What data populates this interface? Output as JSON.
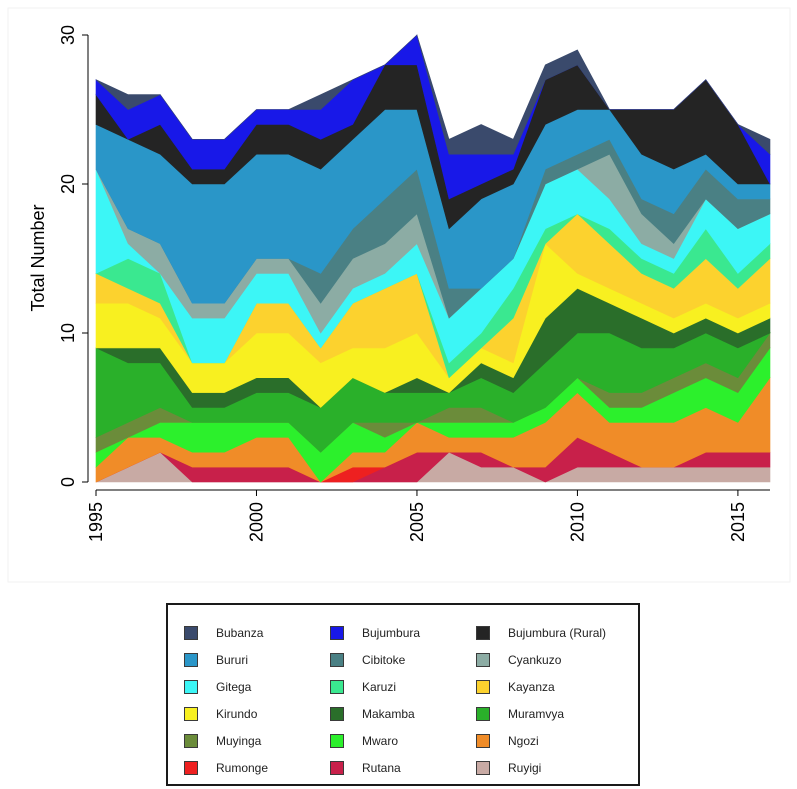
{
  "chart_data": {
    "type": "area",
    "stacked": true,
    "title": "",
    "ylabel": "Total Number",
    "xlabel": "",
    "xlim": [
      1995,
      2016
    ],
    "ylim": [
      0,
      30
    ],
    "x_ticks": [
      1995,
      2000,
      2005,
      2010,
      2015
    ],
    "y_ticks": [
      0,
      10,
      20,
      30
    ],
    "grid": false,
    "legend_position": "bottom",
    "x": [
      1995,
      1996,
      1997,
      1998,
      1999,
      2000,
      2001,
      2002,
      2003,
      2004,
      2005,
      2006,
      2007,
      2008,
      2009,
      2010,
      2011,
      2012,
      2013,
      2014,
      2015,
      2016
    ],
    "series": [
      {
        "name": "Ruyigi",
        "color": "#c8aaa4",
        "values": [
          0,
          1,
          2,
          0,
          0,
          0,
          0,
          0,
          0,
          0,
          0,
          2,
          1,
          1,
          0,
          1,
          1,
          1,
          1,
          1,
          1,
          1
        ]
      },
      {
        "name": "Rutana",
        "color": "#c8204a",
        "values": [
          0,
          0,
          0,
          1,
          1,
          1,
          1,
          0,
          0,
          1,
          2,
          0,
          1,
          0,
          1,
          2,
          1,
          0,
          0,
          1,
          1,
          1
        ]
      },
      {
        "name": "Rumonge",
        "color": "#ee2020",
        "values": [
          0,
          0,
          0,
          0,
          0,
          0,
          0,
          0,
          1,
          0,
          0,
          0,
          0,
          0,
          0,
          0,
          0,
          0,
          0,
          0,
          0,
          0
        ]
      },
      {
        "name": "Ngozi",
        "color": "#f08c28",
        "values": [
          1,
          2,
          1,
          1,
          1,
          2,
          2,
          0,
          1,
          1,
          2,
          1,
          1,
          2,
          3,
          3,
          2,
          3,
          3,
          3,
          2,
          5
        ]
      },
      {
        "name": "Mwaro",
        "color": "#2cf02c",
        "values": [
          1,
          0,
          1,
          2,
          2,
          1,
          1,
          2,
          2,
          1,
          0,
          1,
          1,
          1,
          1,
          1,
          1,
          1,
          2,
          2,
          2,
          2
        ]
      },
      {
        "name": "Muyinga",
        "color": "#6b8c3a",
        "values": [
          1,
          1,
          1,
          0,
          0,
          0,
          0,
          0,
          0,
          1,
          0,
          1,
          1,
          0,
          0,
          0,
          1,
          1,
          1,
          1,
          1,
          1
        ]
      },
      {
        "name": "Muramvya",
        "color": "#2ab02a",
        "values": [
          6,
          4,
          3,
          1,
          1,
          2,
          2,
          3,
          3,
          2,
          2,
          1,
          2,
          2,
          3,
          3,
          4,
          3,
          2,
          2,
          2,
          0
        ]
      },
      {
        "name": "Makamba",
        "color": "#2a6e2a",
        "values": [
          0,
          1,
          1,
          1,
          1,
          1,
          1,
          0,
          0,
          0,
          1,
          0,
          1,
          1,
          3,
          3,
          2,
          2,
          1,
          1,
          1,
          1
        ]
      },
      {
        "name": "Kirundo",
        "color": "#f8f020",
        "values": [
          3,
          3,
          2,
          2,
          2,
          3,
          3,
          3,
          2,
          3,
          3,
          1,
          1,
          1,
          5,
          1,
          1,
          1,
          1,
          1,
          1,
          1
        ]
      },
      {
        "name": "Kayanza",
        "color": "#fcd22e",
        "values": [
          2,
          1,
          1,
          0,
          0,
          2,
          2,
          1,
          3,
          4,
          4,
          0,
          0,
          3,
          0,
          4,
          3,
          2,
          2,
          3,
          2,
          3
        ]
      },
      {
        "name": "Karuzi",
        "color": "#3ae890",
        "values": [
          0,
          2,
          2,
          0,
          0,
          0,
          0,
          0,
          0,
          0,
          0,
          1,
          1,
          2,
          1,
          0,
          1,
          1,
          1,
          2,
          1,
          1
        ]
      },
      {
        "name": "Gitega",
        "color": "#3cf6f6",
        "values": [
          7,
          1,
          0,
          3,
          3,
          2,
          2,
          1,
          1,
          1,
          2,
          3,
          3,
          2,
          3,
          3,
          2,
          1,
          1,
          2,
          3,
          2
        ]
      },
      {
        "name": "Cyankuzo",
        "color": "#8caca4",
        "values": [
          0,
          1,
          2,
          1,
          1,
          1,
          1,
          2,
          2,
          2,
          2,
          0,
          0,
          0,
          0,
          0,
          3,
          2,
          1,
          0,
          0,
          0
        ]
      },
      {
        "name": "Cibitoke",
        "color": "#4a8084",
        "values": [
          0,
          0,
          0,
          0,
          0,
          0,
          0,
          2,
          2,
          3,
          3,
          2,
          0,
          0,
          1,
          1,
          1,
          1,
          2,
          2,
          2,
          1
        ]
      },
      {
        "name": "Bururi",
        "color": "#2a96c8",
        "values": [
          3,
          6,
          6,
          8,
          8,
          7,
          7,
          7,
          6,
          6,
          4,
          4,
          6,
          5,
          3,
          3,
          2,
          3,
          3,
          1,
          1,
          1
        ]
      },
      {
        "name": "Bujumbura (Rural)",
        "color": "#242424",
        "values": [
          2,
          0,
          2,
          1,
          1,
          2,
          2,
          2,
          1,
          3,
          3,
          2,
          1,
          1,
          3,
          3,
          0,
          3,
          4,
          5,
          4,
          0
        ]
      },
      {
        "name": "Bujumbura",
        "color": "#1818e8",
        "values": [
          1,
          2,
          2,
          2,
          2,
          1,
          1,
          2,
          3,
          0,
          2,
          3,
          2,
          1,
          0,
          0,
          0,
          0,
          0,
          0,
          0,
          2
        ]
      },
      {
        "name": "Bubanza",
        "color": "#3a4a6c",
        "values": [
          0,
          1,
          0,
          0,
          0,
          0,
          0,
          1,
          0,
          0,
          0,
          1,
          2,
          1,
          1,
          1,
          0,
          0,
          0,
          0,
          0,
          1
        ]
      }
    ],
    "legend_order": [
      "Bubanza",
      "Bujumbura",
      "Bujumbura (Rural)",
      "Bururi",
      "Cibitoke",
      "Cyankuzo",
      "Gitega",
      "Karuzi",
      "Kayanza",
      "Kirundo",
      "Makamba",
      "Muramvya",
      "Muyinga",
      "Mwaro",
      "Ngozi",
      "Rumonge",
      "Rutana",
      "Ruyigi"
    ]
  }
}
